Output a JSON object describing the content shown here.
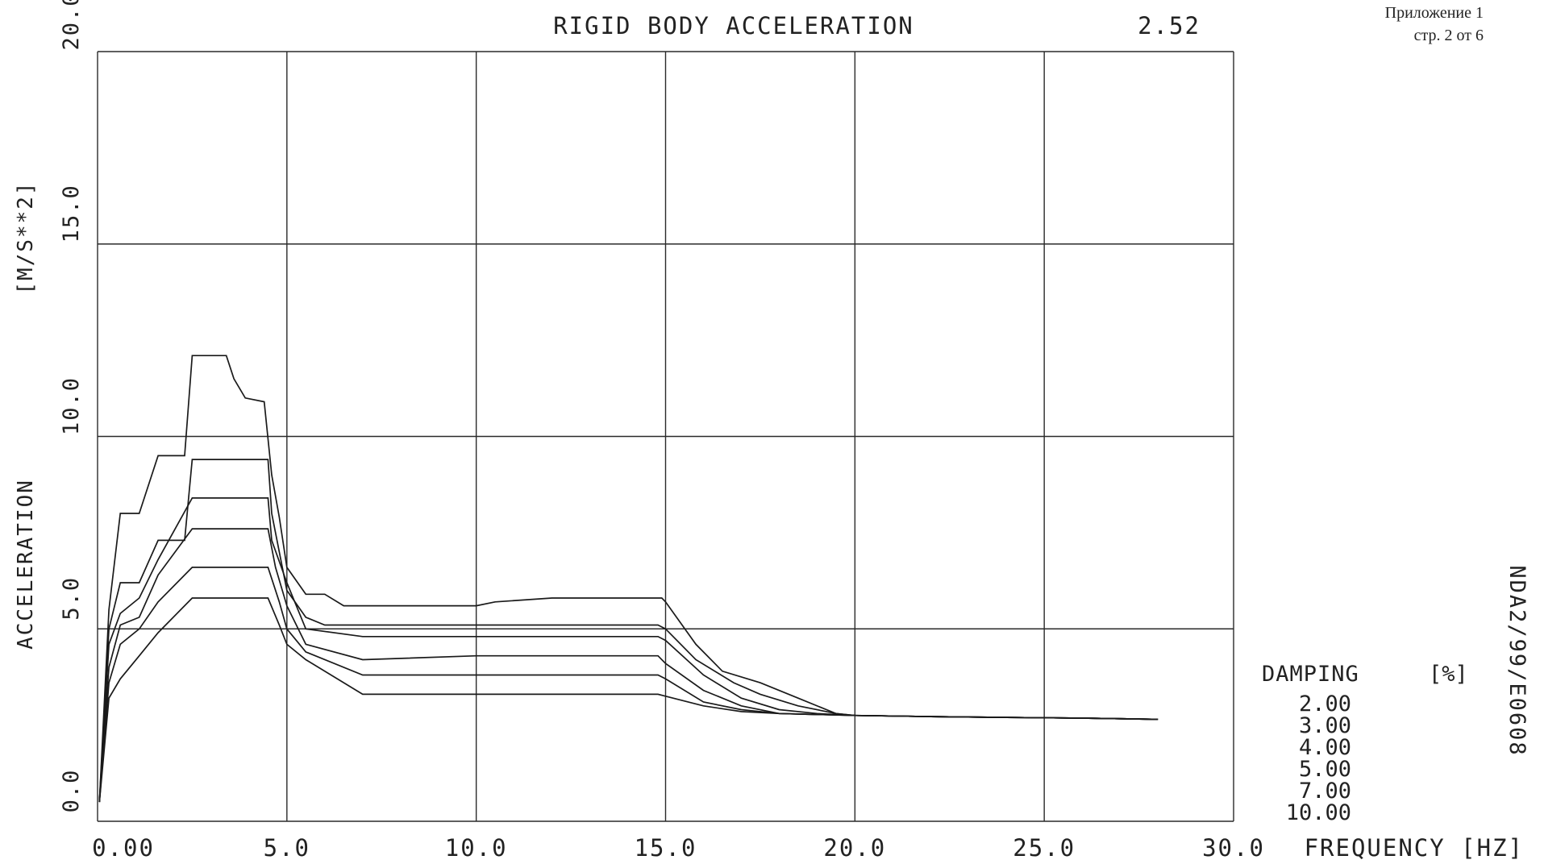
{
  "header": {
    "attachment": "Приложение 1",
    "page": "стр. 2 от 6"
  },
  "side_code": "NDA2/99/E0608",
  "chart_data": {
    "type": "line",
    "title": "RIGID BODY ACCELERATION",
    "title_value": "2.52",
    "xlabel": "FREQUENCY [HZ]",
    "ylabel": "ACCELERATION",
    "yunit": "[M/S**2]",
    "xlim": [
      0,
      30
    ],
    "ylim": [
      0,
      20
    ],
    "x_ticks": [
      "0.00",
      "5.0",
      "10.0",
      "15.0",
      "20.0",
      "25.0",
      "30.0"
    ],
    "x_tick_values": [
      0,
      5,
      10,
      15,
      20,
      25,
      30
    ],
    "y_ticks": [
      "0.0",
      "5.0",
      "10.0",
      "15.0",
      "20.0"
    ],
    "y_tick_values": [
      0,
      5,
      10,
      15,
      20
    ],
    "grid": true,
    "legend": {
      "title": "DAMPING",
      "unit": "[%]",
      "placement": "bottom-right",
      "entries": [
        "2.00",
        "3.00",
        "4.00",
        "5.00",
        "7.00",
        "10.00"
      ]
    },
    "series": [
      {
        "name": "2.00",
        "x": [
          0.05,
          0.3,
          0.6,
          1.1,
          1.6,
          2.3,
          2.5,
          3.4,
          3.6,
          3.9,
          4.4,
          4.6,
          4.8,
          5.0,
          5.5,
          6.0,
          6.5,
          8.0,
          10.0,
          10.5,
          12.0,
          14.9,
          15.0,
          15.8,
          16.5,
          17.5,
          18.5,
          19.5,
          20.0,
          22.0,
          24.0,
          26.0,
          28.0
        ],
        "y": [
          0.5,
          5.5,
          8.0,
          8.0,
          9.5,
          9.5,
          12.1,
          12.1,
          11.5,
          11.0,
          10.9,
          9.0,
          7.9,
          6.6,
          5.9,
          5.9,
          5.6,
          5.6,
          5.6,
          5.7,
          5.8,
          5.8,
          5.7,
          4.6,
          3.9,
          3.6,
          3.2,
          2.8,
          2.75,
          2.72,
          2.7,
          2.68,
          2.65
        ]
      },
      {
        "name": "3.00",
        "x": [
          0.05,
          0.3,
          0.6,
          1.1,
          1.6,
          2.3,
          2.5,
          4.5,
          4.6,
          4.8,
          5.0,
          5.5,
          6.0,
          7.0,
          10.0,
          12.0,
          14.8,
          15.0,
          15.8,
          16.8,
          17.5,
          18.5,
          19.5,
          20.0,
          22.0,
          24.0,
          26.0,
          28.0
        ],
        "y": [
          0.5,
          5.0,
          6.2,
          6.2,
          7.3,
          7.3,
          9.4,
          9.4,
          8.0,
          7.0,
          6.0,
          5.3,
          5.1,
          5.1,
          5.1,
          5.1,
          5.1,
          5.0,
          4.2,
          3.6,
          3.3,
          3.0,
          2.8,
          2.75,
          2.72,
          2.7,
          2.68,
          2.65
        ]
      },
      {
        "name": "4.00",
        "x": [
          0.05,
          0.3,
          0.6,
          1.1,
          1.6,
          2.5,
          4.5,
          4.6,
          5.0,
          5.5,
          7.0,
          10.0,
          14.8,
          15.0,
          16.0,
          17.0,
          18.0,
          19.0,
          20.0,
          22.0,
          24.0,
          26.0,
          28.0
        ],
        "y": [
          0.5,
          4.6,
          5.4,
          5.8,
          6.8,
          8.4,
          8.4,
          7.3,
          6.2,
          5.0,
          4.8,
          4.8,
          4.8,
          4.7,
          3.8,
          3.2,
          2.9,
          2.8,
          2.75,
          2.72,
          2.7,
          2.68,
          2.65
        ]
      },
      {
        "name": "5.00",
        "x": [
          0.05,
          0.3,
          0.6,
          1.1,
          1.6,
          2.5,
          4.5,
          4.7,
          5.0,
          5.5,
          7.0,
          10.0,
          14.8,
          15.0,
          16.0,
          17.0,
          18.0,
          20.0,
          22.0,
          24.0,
          26.0,
          28.0
        ],
        "y": [
          0.5,
          4.0,
          5.1,
          5.3,
          6.4,
          7.6,
          7.6,
          6.6,
          5.6,
          4.6,
          4.2,
          4.3,
          4.3,
          4.1,
          3.4,
          3.0,
          2.8,
          2.75,
          2.72,
          2.7,
          2.68,
          2.65
        ]
      },
      {
        "name": "7.00",
        "x": [
          0.05,
          0.3,
          0.6,
          1.1,
          1.6,
          2.5,
          4.5,
          4.8,
          5.0,
          5.5,
          7.0,
          10.0,
          14.8,
          15.0,
          16.0,
          17.0,
          18.0,
          20.0,
          22.0,
          24.0,
          26.0,
          28.0
        ],
        "y": [
          0.5,
          3.6,
          4.6,
          5.0,
          5.7,
          6.6,
          6.6,
          5.7,
          5.0,
          4.4,
          3.8,
          3.8,
          3.8,
          3.7,
          3.1,
          2.9,
          2.8,
          2.75,
          2.72,
          2.7,
          2.68,
          2.65
        ]
      },
      {
        "name": "10.00",
        "x": [
          0.05,
          0.3,
          0.6,
          1.1,
          1.6,
          2.5,
          4.5,
          4.8,
          5.0,
          5.5,
          7.0,
          10.0,
          14.8,
          15.0,
          16.0,
          17.0,
          18.0,
          20.0,
          22.0,
          24.0,
          26.0,
          28.0
        ],
        "y": [
          0.5,
          3.2,
          3.7,
          4.3,
          4.9,
          5.8,
          5.8,
          5.1,
          4.6,
          4.2,
          3.3,
          3.3,
          3.3,
          3.25,
          3.0,
          2.85,
          2.8,
          2.75,
          2.72,
          2.7,
          2.68,
          2.65
        ]
      }
    ]
  }
}
